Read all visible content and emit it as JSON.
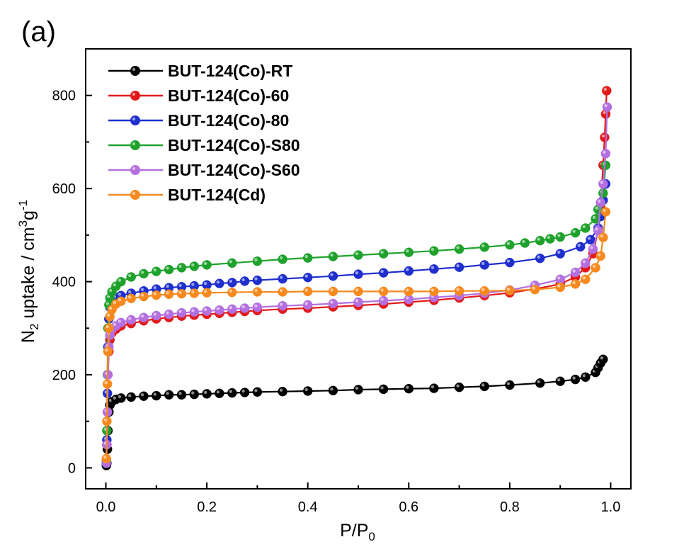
{
  "panel_label": "(a)",
  "chart_data": {
    "type": "line",
    "xlabel": "P/P",
    "xlabel_sub": "0",
    "ylabel_parts": [
      "N",
      "2",
      " uptake / cm",
      "3",
      "g",
      "-1"
    ],
    "xlim": [
      -0.04,
      1.04
    ],
    "ylim": [
      -45,
      900
    ],
    "xticks": [
      0.0,
      0.2,
      0.4,
      0.6,
      0.8,
      1.0
    ],
    "xtick_labels": [
      "0.0",
      "0.2",
      "0.4",
      "0.6",
      "0.8",
      "1.0"
    ],
    "yticks": [
      0,
      200,
      400,
      600,
      800
    ],
    "ytick_labels": [
      "0",
      "200",
      "400",
      "600",
      "800"
    ],
    "grid": false,
    "legend_position": "top-left",
    "series": [
      {
        "name": "BUT-124(Co)-RT",
        "color": "#000000",
        "points": [
          [
            0.001,
            5
          ],
          [
            0.002,
            10
          ],
          [
            0.003,
            40
          ],
          [
            0.004,
            80
          ],
          [
            0.006,
            120
          ],
          [
            0.008,
            135
          ],
          [
            0.012,
            142
          ],
          [
            0.02,
            147
          ],
          [
            0.03,
            150
          ],
          [
            0.05,
            152
          ],
          [
            0.075,
            154
          ],
          [
            0.1,
            155
          ],
          [
            0.125,
            157
          ],
          [
            0.15,
            157
          ],
          [
            0.175,
            158
          ],
          [
            0.2,
            159
          ],
          [
            0.225,
            160
          ],
          [
            0.25,
            161
          ],
          [
            0.275,
            162
          ],
          [
            0.3,
            163
          ],
          [
            0.35,
            164
          ],
          [
            0.4,
            165
          ],
          [
            0.45,
            166
          ],
          [
            0.5,
            168
          ],
          [
            0.55,
            169
          ],
          [
            0.6,
            170
          ],
          [
            0.65,
            171
          ],
          [
            0.7,
            173
          ],
          [
            0.75,
            175
          ],
          [
            0.8,
            178
          ],
          [
            0.86,
            182
          ],
          [
            0.9,
            186
          ],
          [
            0.93,
            190
          ],
          [
            0.95,
            195
          ],
          [
            0.97,
            205
          ],
          [
            0.975,
            215
          ],
          [
            0.98,
            225
          ],
          [
            0.985,
            233
          ]
        ]
      },
      {
        "name": "BUT-124(Co)-60",
        "color": "#e31a1c",
        "points": [
          [
            0.001,
            10
          ],
          [
            0.002,
            50
          ],
          [
            0.003,
            120
          ],
          [
            0.004,
            200
          ],
          [
            0.006,
            250
          ],
          [
            0.008,
            275
          ],
          [
            0.012,
            290
          ],
          [
            0.02,
            298
          ],
          [
            0.03,
            305
          ],
          [
            0.05,
            310
          ],
          [
            0.075,
            316
          ],
          [
            0.1,
            320
          ],
          [
            0.125,
            323
          ],
          [
            0.15,
            326
          ],
          [
            0.175,
            328
          ],
          [
            0.2,
            330
          ],
          [
            0.225,
            332
          ],
          [
            0.25,
            334
          ],
          [
            0.275,
            336
          ],
          [
            0.3,
            338
          ],
          [
            0.35,
            341
          ],
          [
            0.4,
            343
          ],
          [
            0.45,
            346
          ],
          [
            0.5,
            349
          ],
          [
            0.55,
            352
          ],
          [
            0.6,
            356
          ],
          [
            0.65,
            360
          ],
          [
            0.7,
            365
          ],
          [
            0.75,
            370
          ],
          [
            0.8,
            376
          ],
          [
            0.85,
            384
          ],
          [
            0.9,
            395
          ],
          [
            0.93,
            410
          ],
          [
            0.95,
            430
          ],
          [
            0.965,
            460
          ],
          [
            0.975,
            510
          ],
          [
            0.98,
            560
          ],
          [
            0.985,
            650
          ],
          [
            0.988,
            710
          ],
          [
            0.99,
            760
          ],
          [
            0.992,
            810
          ]
        ]
      },
      {
        "name": "BUT-124(Co)-80",
        "color": "#1f2fce",
        "points": [
          [
            0.001,
            10
          ],
          [
            0.002,
            60
          ],
          [
            0.003,
            160
          ],
          [
            0.004,
            260
          ],
          [
            0.006,
            320
          ],
          [
            0.008,
            345
          ],
          [
            0.012,
            358
          ],
          [
            0.02,
            365
          ],
          [
            0.03,
            370
          ],
          [
            0.05,
            375
          ],
          [
            0.075,
            380
          ],
          [
            0.1,
            384
          ],
          [
            0.125,
            387
          ],
          [
            0.15,
            389
          ],
          [
            0.175,
            391
          ],
          [
            0.2,
            393
          ],
          [
            0.225,
            396
          ],
          [
            0.25,
            398
          ],
          [
            0.275,
            401
          ],
          [
            0.3,
            403
          ],
          [
            0.35,
            406
          ],
          [
            0.4,
            409
          ],
          [
            0.45,
            412
          ],
          [
            0.5,
            416
          ],
          [
            0.55,
            419
          ],
          [
            0.6,
            423
          ],
          [
            0.65,
            427
          ],
          [
            0.7,
            431
          ],
          [
            0.75,
            436
          ],
          [
            0.8,
            441
          ],
          [
            0.86,
            450
          ],
          [
            0.9,
            460
          ],
          [
            0.94,
            475
          ],
          [
            0.96,
            490
          ],
          [
            0.975,
            515
          ],
          [
            0.98,
            540
          ],
          [
            0.985,
            575
          ],
          [
            0.99,
            610
          ]
        ]
      },
      {
        "name": "BUT-124(Co)-S80",
        "color": "#1fa22c",
        "points": [
          [
            0.001,
            15
          ],
          [
            0.002,
            80
          ],
          [
            0.003,
            200
          ],
          [
            0.004,
            300
          ],
          [
            0.006,
            350
          ],
          [
            0.008,
            365
          ],
          [
            0.012,
            378
          ],
          [
            0.02,
            390
          ],
          [
            0.03,
            400
          ],
          [
            0.05,
            410
          ],
          [
            0.075,
            417
          ],
          [
            0.1,
            422
          ],
          [
            0.125,
            426
          ],
          [
            0.15,
            430
          ],
          [
            0.175,
            433
          ],
          [
            0.2,
            436
          ],
          [
            0.25,
            440
          ],
          [
            0.3,
            444
          ],
          [
            0.35,
            448
          ],
          [
            0.4,
            451
          ],
          [
            0.45,
            454
          ],
          [
            0.5,
            457
          ],
          [
            0.55,
            460
          ],
          [
            0.6,
            463
          ],
          [
            0.65,
            466
          ],
          [
            0.7,
            470
          ],
          [
            0.75,
            474
          ],
          [
            0.8,
            479
          ],
          [
            0.83,
            483
          ],
          [
            0.86,
            488
          ],
          [
            0.88,
            492
          ],
          [
            0.9,
            496
          ],
          [
            0.93,
            505
          ],
          [
            0.95,
            515
          ],
          [
            0.97,
            535
          ],
          [
            0.975,
            555
          ],
          [
            0.98,
            570
          ],
          [
            0.985,
            590
          ],
          [
            0.99,
            650
          ]
        ]
      },
      {
        "name": "BUT-124(Co)-S60",
        "color": "#b46fe0",
        "points": [
          [
            0.001,
            10
          ],
          [
            0.002,
            50
          ],
          [
            0.003,
            120
          ],
          [
            0.004,
            200
          ],
          [
            0.006,
            260
          ],
          [
            0.008,
            285
          ],
          [
            0.012,
            298
          ],
          [
            0.02,
            305
          ],
          [
            0.03,
            312
          ],
          [
            0.05,
            318
          ],
          [
            0.075,
            323
          ],
          [
            0.1,
            327
          ],
          [
            0.125,
            330
          ],
          [
            0.15,
            333
          ],
          [
            0.175,
            335
          ],
          [
            0.2,
            337
          ],
          [
            0.225,
            339
          ],
          [
            0.25,
            341
          ],
          [
            0.275,
            343
          ],
          [
            0.3,
            345
          ],
          [
            0.35,
            348
          ],
          [
            0.4,
            350
          ],
          [
            0.45,
            353
          ],
          [
            0.5,
            356
          ],
          [
            0.55,
            359
          ],
          [
            0.6,
            362
          ],
          [
            0.65,
            366
          ],
          [
            0.7,
            370
          ],
          [
            0.75,
            375
          ],
          [
            0.8,
            382
          ],
          [
            0.85,
            392
          ],
          [
            0.9,
            405
          ],
          [
            0.93,
            420
          ],
          [
            0.95,
            440
          ],
          [
            0.965,
            470
          ],
          [
            0.975,
            510
          ],
          [
            0.98,
            570
          ],
          [
            0.985,
            610
          ],
          [
            0.99,
            675
          ],
          [
            0.993,
            775
          ]
        ]
      },
      {
        "name": "BUT-124(Cd)",
        "color": "#f7891e",
        "points": [
          [
            0.001,
            20
          ],
          [
            0.002,
            100
          ],
          [
            0.003,
            180
          ],
          [
            0.004,
            250
          ],
          [
            0.006,
            300
          ],
          [
            0.008,
            325
          ],
          [
            0.012,
            340
          ],
          [
            0.02,
            352
          ],
          [
            0.03,
            358
          ],
          [
            0.05,
            364
          ],
          [
            0.075,
            368
          ],
          [
            0.1,
            371
          ],
          [
            0.125,
            373
          ],
          [
            0.15,
            374
          ],
          [
            0.175,
            375
          ],
          [
            0.2,
            376
          ],
          [
            0.25,
            377
          ],
          [
            0.3,
            378
          ],
          [
            0.35,
            378
          ],
          [
            0.4,
            379
          ],
          [
            0.45,
            379
          ],
          [
            0.5,
            379
          ],
          [
            0.55,
            379
          ],
          [
            0.6,
            379
          ],
          [
            0.65,
            379
          ],
          [
            0.7,
            380
          ],
          [
            0.75,
            380
          ],
          [
            0.8,
            381
          ],
          [
            0.85,
            383
          ],
          [
            0.9,
            388
          ],
          [
            0.93,
            395
          ],
          [
            0.95,
            405
          ],
          [
            0.97,
            430
          ],
          [
            0.98,
            455
          ],
          [
            0.985,
            495
          ],
          [
            0.99,
            550
          ]
        ]
      }
    ]
  }
}
